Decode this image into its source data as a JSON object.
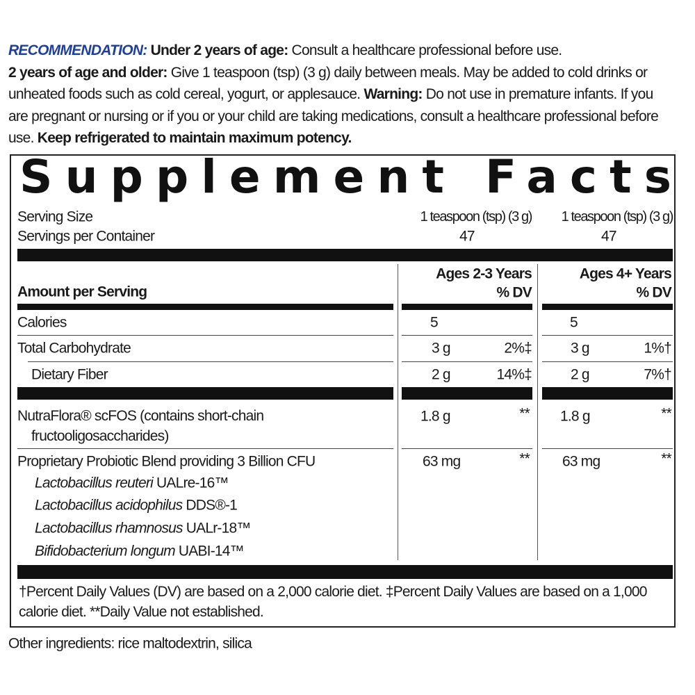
{
  "recommendation": {
    "heading": "RECOMMENDATION:",
    "under_2_label": "Under 2 years of age:",
    "under_2_text": "Consult a healthcare professional before use.",
    "over_2_label": "2 years of age and older:",
    "over_2_text": "Give 1 teaspoon (tsp) (3 g) daily between meals. May be added to cold drinks or unheated foods such as cold cereal, yogurt, or applesauce.",
    "warning_label": "Warning:",
    "warning_text": "Do not use in premature infants. If you are pregnant or nursing or if you or your child are taking medications, consult a healthcare professional before use.",
    "storage": "Keep refrigerated to maintain maximum potency."
  },
  "supplement_facts": {
    "title": "Supplement Facts",
    "serving_size": {
      "label": "Serving Size",
      "values": [
        "1 teaspoon (tsp) (3 g)",
        "1 teaspoon (tsp) (3 g)"
      ]
    },
    "servings_per_container": {
      "label": "Servings per Container",
      "values": [
        47,
        47
      ]
    },
    "amount_per_serving": "Amount per Serving",
    "columns": [
      {
        "title": "Ages 2-3 Years",
        "dv": "% DV"
      },
      {
        "title": "Ages 4+ Years",
        "dv": "% DV"
      }
    ],
    "rows": [
      {
        "name": "Calories",
        "values": [
          {
            "amount": 5
          },
          {
            "amount": 5
          }
        ]
      },
      {
        "name": "Total Carbohydrate",
        "values": [
          {
            "amount": "3 g",
            "dv": "2%‡"
          },
          {
            "amount": "3 g",
            "dv": "1%†"
          }
        ]
      },
      {
        "name": "Dietary Fiber",
        "values": [
          {
            "amount": "2 g",
            "dv": "14%‡"
          },
          {
            "amount": "2 g",
            "dv": "7%†"
          }
        ]
      },
      {
        "name": "NutraFlora® scFOS (contains short-chain fructooligosaccharides)",
        "values": [
          {
            "amount": "1.8 g",
            "dv": "**"
          },
          {
            "amount": "1.8 g",
            "dv": "**"
          }
        ]
      },
      {
        "name": "Proprietary Probiotic Blend providing 3 Billion CFU",
        "values": [
          {
            "amount": "63 mg",
            "dv": "**"
          },
          {
            "amount": "63 mg",
            "dv": "**"
          }
        ],
        "ingredients": [
          {
            "species": "Lactobacillus reuteri",
            "strain": "UALre-16™"
          },
          {
            "species": "Lactobacillus acidophilus",
            "strain": "DDS®-1"
          },
          {
            "species": "Lactobacillus rhamnosus",
            "strain": "UALr-18™"
          },
          {
            "species": "Bifidobacterium longum",
            "strain": "UABI-14™"
          }
        ]
      }
    ],
    "footnote": "†Percent Daily Values (DV) are based on a 2,000 calorie diet. ‡Percent Daily Values are based on a 1,000 calorie diet. **Daily Value not established."
  },
  "other_ingredients": "Other ingredients: rice maltodextrin, silica"
}
